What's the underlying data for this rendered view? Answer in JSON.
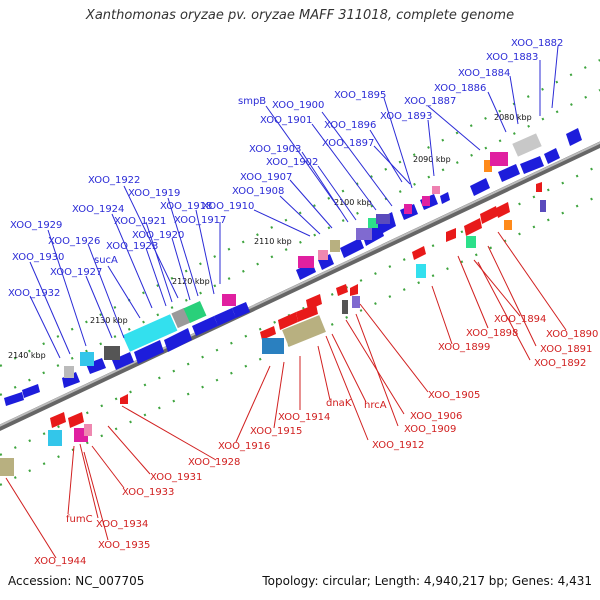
{
  "title": "Xanthomonas oryzae pv. oryzae MAFF 311018, complete genome",
  "footer": {
    "accession": "Accession: NC_007705",
    "summary": "Topology: circular; Length: 4,940,217 bp; Genes: 4,431"
  },
  "scale_labels": [
    "2080 kbp",
    "2090 kbp",
    "2100 kbp",
    "2110 kbp",
    "2120 kbp",
    "2130 kbp",
    "2140 kbp"
  ],
  "top_labels": [
    "XOO_1882",
    "XOO_1883",
    "XOO_1884",
    "XOO_1886",
    "XOO_1887",
    "XOO_1893",
    "XOO_1895",
    "smpB",
    "XOO_1900",
    "XOO_1901",
    "XOO_1896",
    "XOO_1897",
    "XOO_1903",
    "XOO_1902",
    "XOO_1907",
    "XOO_1908",
    "XOO_1910",
    "XOO_1922",
    "XOO_1919",
    "XOO_1924",
    "XOO_1918",
    "XOO_1921",
    "XOO_1917",
    "XOO_1929",
    "XOO_1920",
    "XOO_1926",
    "XOO_1923",
    "XOO_1930",
    "sucA",
    "XOO_1927",
    "XOO_1932"
  ],
  "bottom_labels": [
    "XOO_1894",
    "XOO_1890",
    "XOO_1898",
    "XOO_1891",
    "XOO_1899",
    "XOO_1892",
    "XOO_1905",
    "XOO_1906",
    "hrcA",
    "XOO_1909",
    "dnaK",
    "XOO_1912",
    "XOO_1914",
    "XOO_1915",
    "XOO_1916",
    "XOO_1928",
    "XOO_1931",
    "XOO_1933",
    "fumC",
    "XOO_1934",
    "XOO_1935",
    "XOO_1944"
  ],
  "colors": {
    "cds": "#1d1ddb",
    "rna": "#e81a1a",
    "top_label": "#2b2bd6",
    "bottom_label": "#d12020",
    "backbone": "#888888",
    "tick": "#2a9a2a"
  }
}
